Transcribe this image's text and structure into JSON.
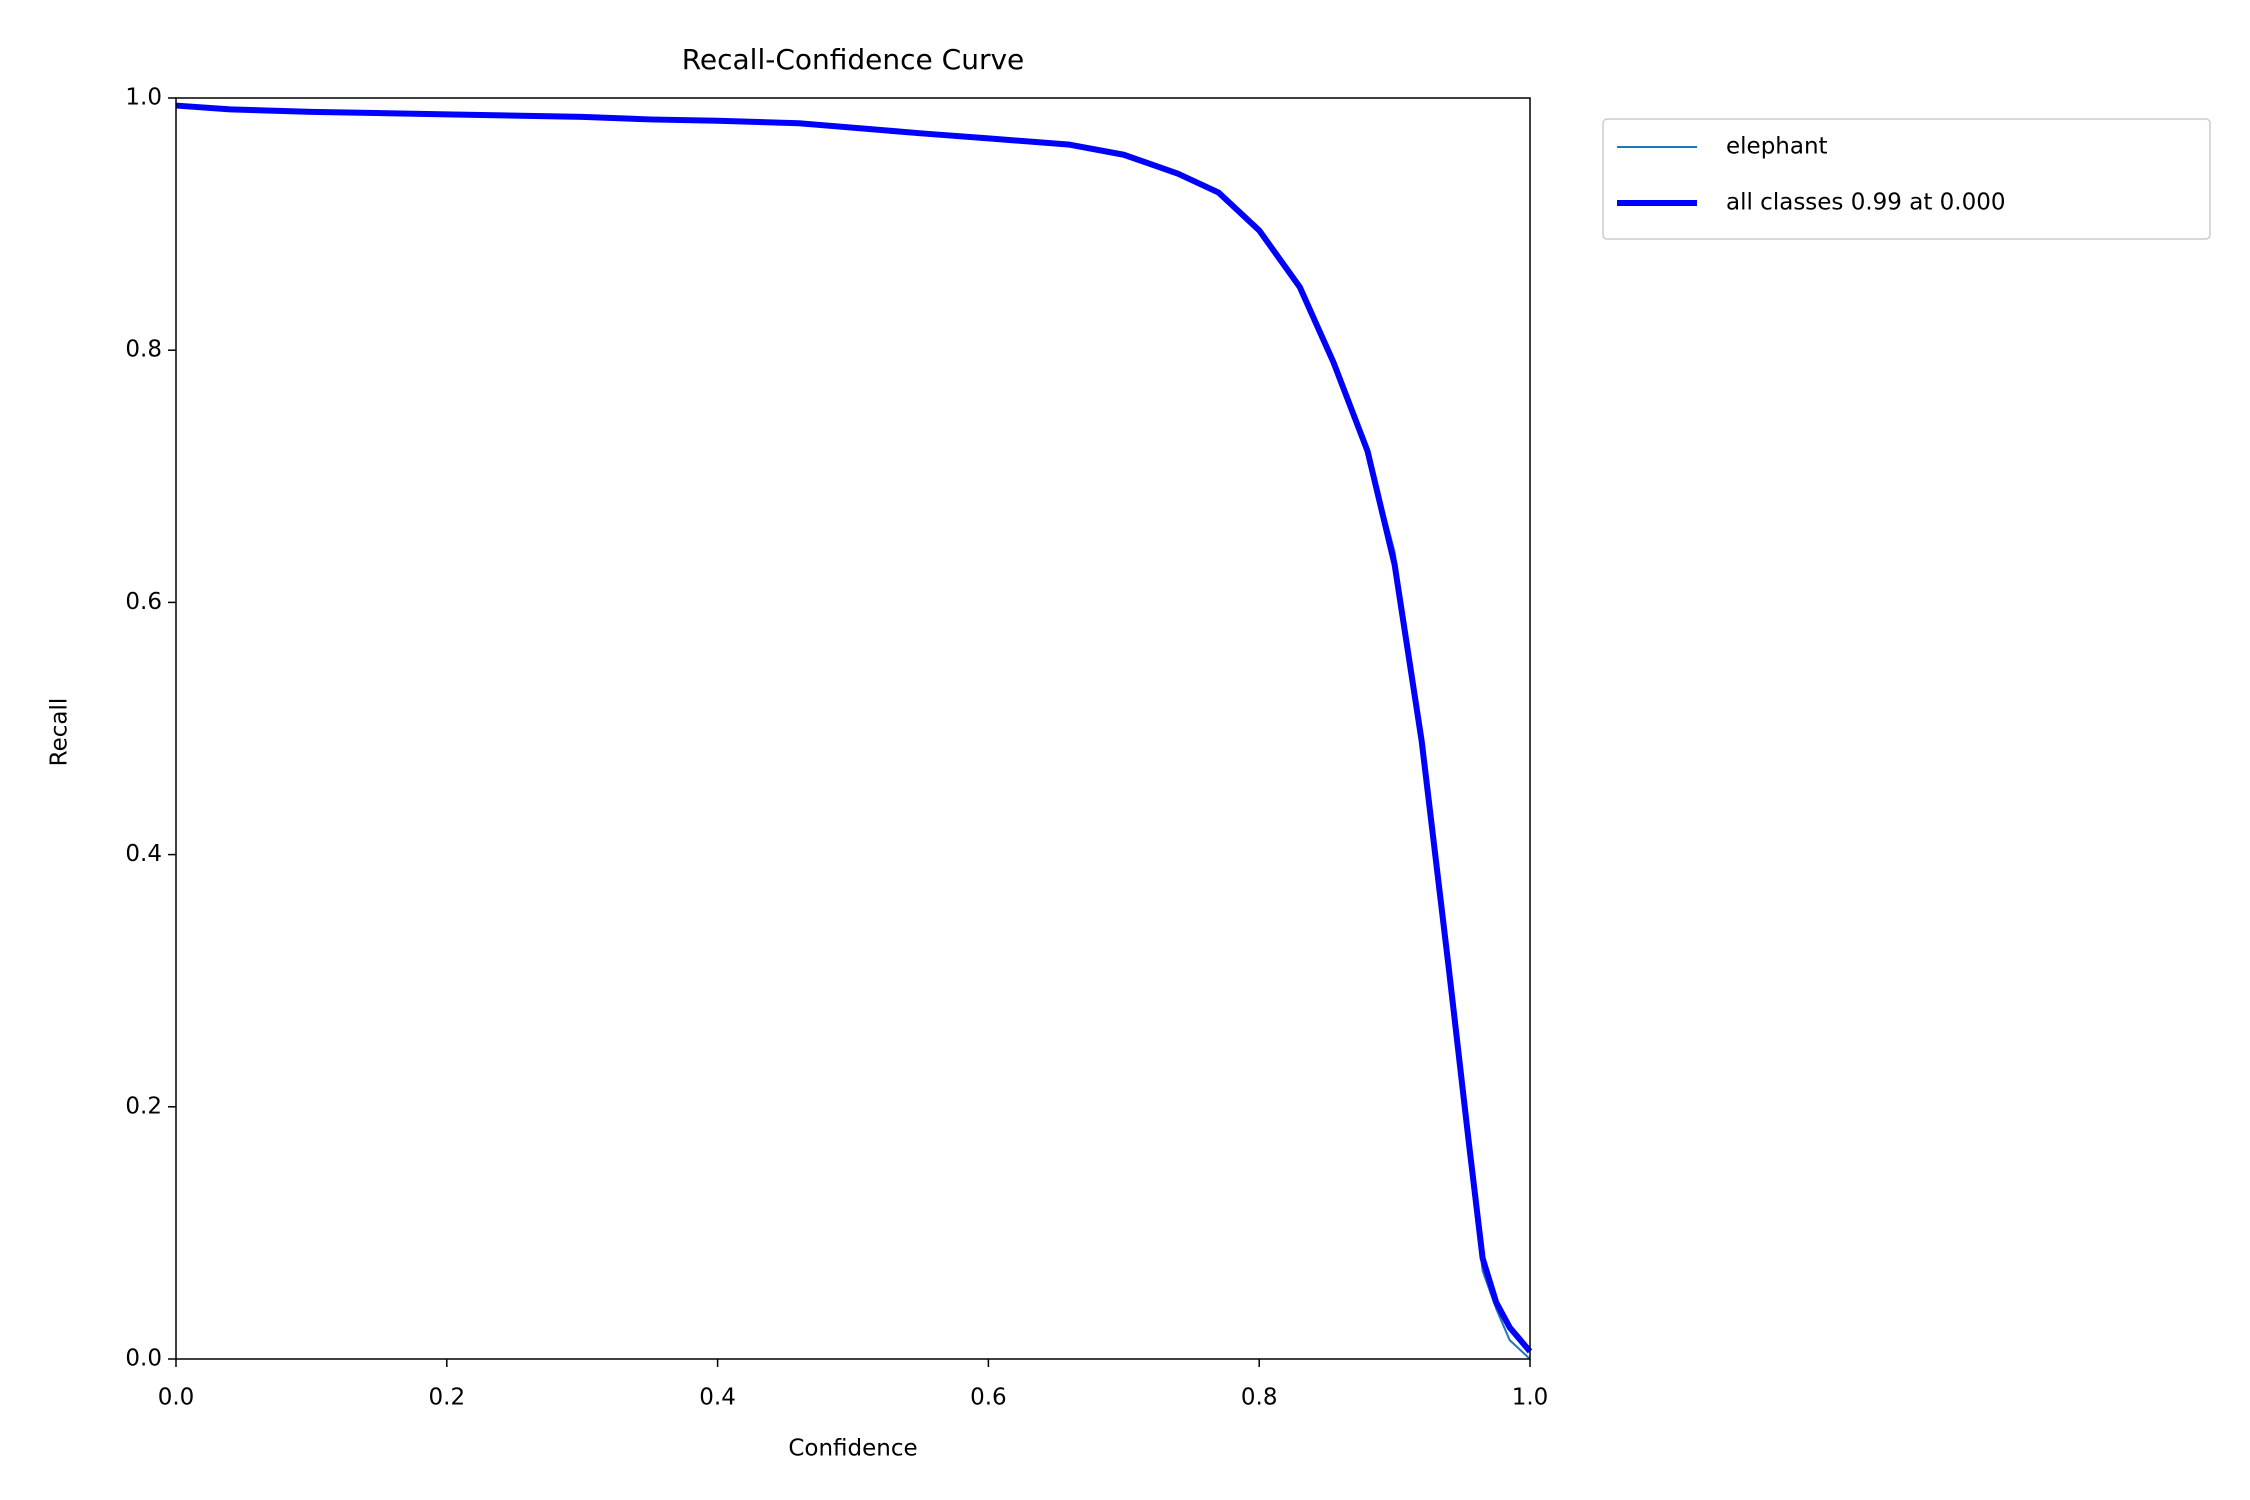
{
  "chart_data": {
    "type": "line",
    "title": "Recall-Confidence Curve",
    "xlabel": "Confidence",
    "ylabel": "Recall",
    "x": [
      0,
      0.04,
      0.1,
      0.2,
      0.3,
      0.35,
      0.4,
      0.46,
      0.55,
      0.6,
      0.66,
      0.7,
      0.74,
      0.77,
      0.8,
      0.83,
      0.855,
      0.88,
      0.9,
      0.92,
      0.94,
      0.955,
      0.965,
      0.975,
      0.985,
      1.0
    ],
    "series": [
      {
        "name": "elephant",
        "color": "#1f77b4",
        "width": 2,
        "values": [
          0.994,
          0.991,
          0.989,
          0.987,
          0.985,
          0.983,
          0.982,
          0.98,
          0.972,
          0.968,
          0.963,
          0.955,
          0.94,
          0.925,
          0.895,
          0.85,
          0.79,
          0.72,
          0.64,
          0.49,
          0.31,
          0.16,
          0.07,
          0.04,
          0.015,
          0.0
        ]
      },
      {
        "name": "all classes 0.99 at 0.000",
        "color": "#0000ff",
        "width": 6,
        "values": [
          0.994,
          0.991,
          0.989,
          0.987,
          0.985,
          0.983,
          0.982,
          0.98,
          0.972,
          0.968,
          0.963,
          0.955,
          0.94,
          0.925,
          0.895,
          0.85,
          0.79,
          0.72,
          0.63,
          0.49,
          0.31,
          0.17,
          0.08,
          0.045,
          0.025,
          0.006
        ]
      }
    ],
    "xlim": [
      0,
      1
    ],
    "ylim": [
      0,
      1
    ],
    "xticks": [
      {
        "value": 0,
        "label": "0.0"
      },
      0.2,
      0.4,
      0.6,
      0.8,
      {
        "value": 1,
        "label": "1.0"
      }
    ],
    "yticks": [
      {
        "value": 0,
        "label": "0.0"
      },
      0.2,
      0.4,
      0.6,
      0.8,
      {
        "value": 1,
        "label": "1.0"
      }
    ],
    "grid": false,
    "legend": "outside upper right"
  }
}
